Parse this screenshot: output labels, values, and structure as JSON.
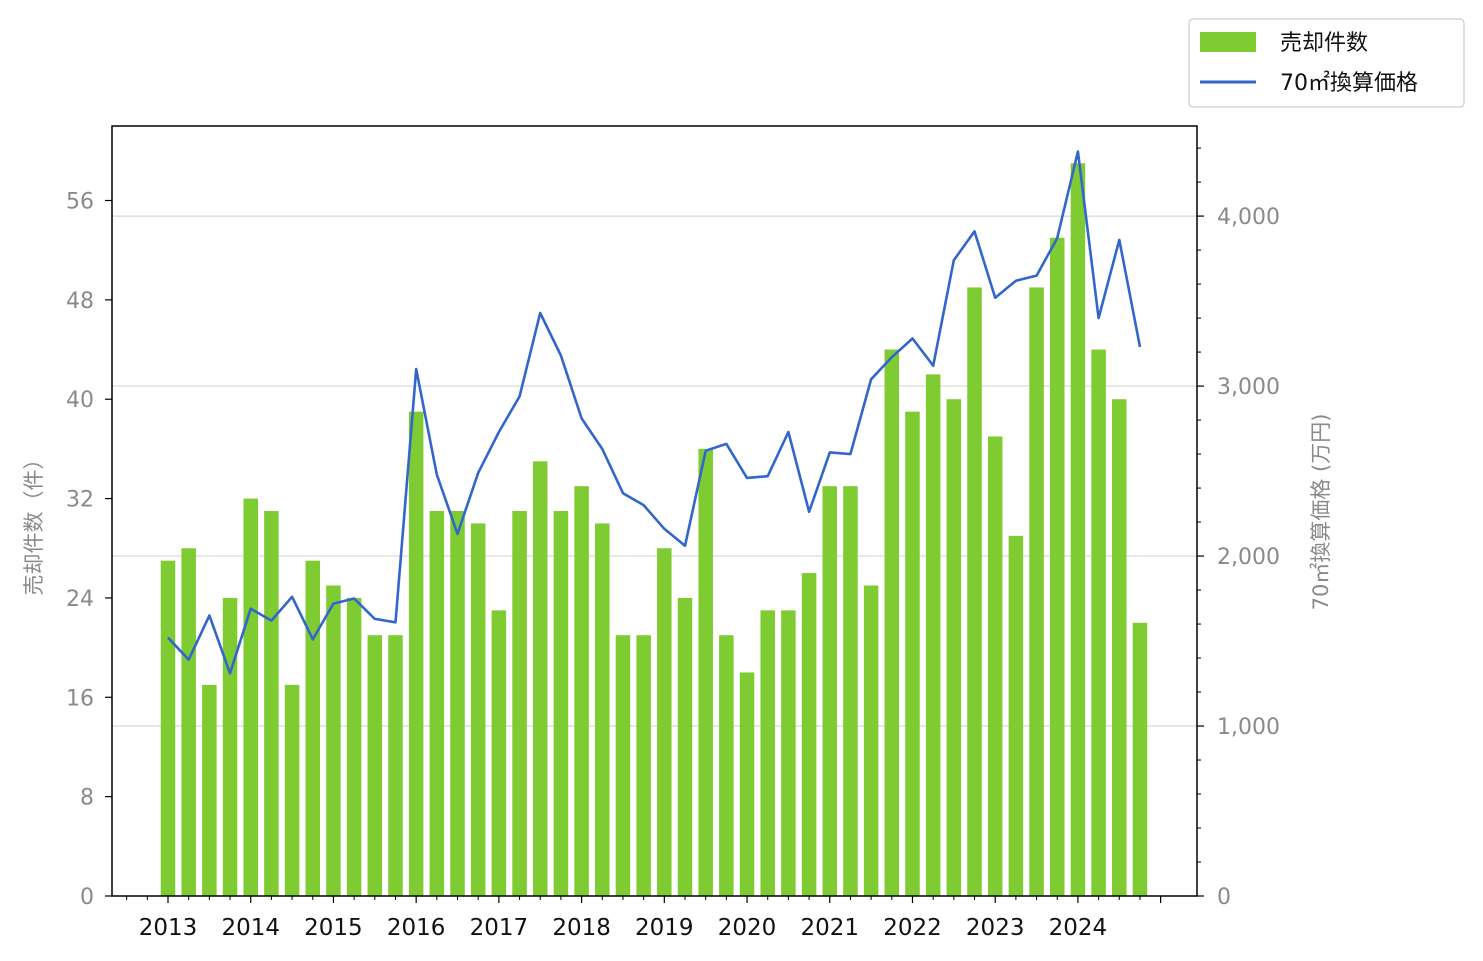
{
  "chart_data": {
    "type": "bar",
    "x_labels": [
      "2013",
      "2014",
      "2015",
      "2016",
      "2017",
      "2018",
      "2019",
      "2020",
      "2021",
      "2022",
      "2023",
      "2024"
    ],
    "series": [
      {
        "name": "売却件数",
        "type": "bar",
        "axis": "left",
        "color": "#7ecb32",
        "values": [
          27,
          28,
          17,
          24,
          32,
          31,
          17,
          27,
          25,
          24,
          21,
          21,
          39,
          31,
          31,
          30,
          23,
          31,
          35,
          31,
          33,
          30,
          21,
          21,
          28,
          24,
          36,
          21,
          18,
          23,
          23,
          26,
          33,
          33,
          25,
          44,
          39,
          42,
          40,
          49,
          37,
          29,
          49,
          53,
          59,
          44,
          40,
          22
        ]
      },
      {
        "name": "70㎡換算価格",
        "type": "line",
        "axis": "right",
        "color": "#3366cc",
        "values": [
          1520,
          1390,
          1650,
          1310,
          1690,
          1620,
          1760,
          1510,
          1720,
          1750,
          1630,
          1610,
          3100,
          2480,
          2130,
          2490,
          2730,
          2940,
          3430,
          3180,
          2810,
          2630,
          2370,
          2300,
          2160,
          2060,
          2620,
          2660,
          2460,
          2470,
          2730,
          2260,
          2610,
          2600,
          3040,
          3170,
          3280,
          3120,
          3740,
          3910,
          3520,
          3620,
          3650,
          3870,
          4380,
          3400,
          3860,
          3230
        ]
      }
    ],
    "left_axis": {
      "label": "売却件数（件）",
      "ticks": [
        "0",
        "8",
        "16",
        "24",
        "32",
        "40",
        "48",
        "56"
      ],
      "range": [
        0,
        62
      ]
    },
    "right_axis": {
      "label": "70㎡換算価格 (万円)",
      "ticks": [
        "0",
        "1,000",
        "2,000",
        "3,000",
        "4,000"
      ],
      "range": [
        0,
        4530
      ]
    },
    "grid": "horizontal-right-axis",
    "legend_position": "top-right"
  }
}
